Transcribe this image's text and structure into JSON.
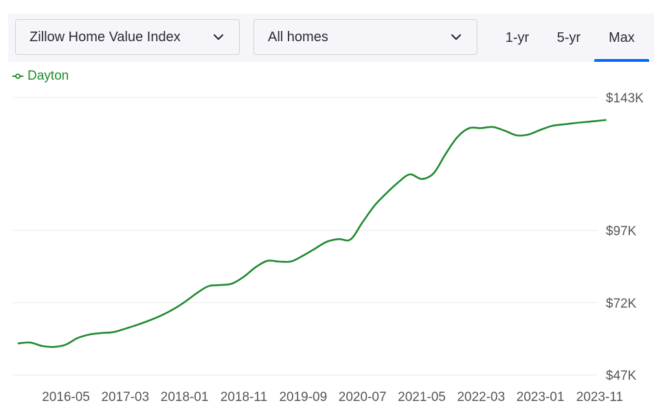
{
  "controls": {
    "metric_dropdown": "Zillow Home Value Index",
    "home_type_dropdown": "All homes",
    "range_tabs": [
      "1-yr",
      "5-yr",
      "Max"
    ],
    "selected_range": "Max",
    "accent_color": "#006aff"
  },
  "chart_data": {
    "type": "line",
    "y_format": "currency_k",
    "y_ticks": [
      47,
      72,
      97,
      143
    ],
    "y_tick_labels": [
      "$47K",
      "$72K",
      "$97K",
      "$143K"
    ],
    "ylim": [
      47,
      143
    ],
    "x_tick_labels": [
      "2016-05",
      "2017-03",
      "2018-01",
      "2018-11",
      "2019-09",
      "2020-07",
      "2021-05",
      "2022-03",
      "2023-01",
      "2023-11"
    ],
    "grid": true,
    "legend_position": "top-left",
    "series": [
      {
        "name": "Dayton",
        "color": "#1f8a2e",
        "x": [
          "2015-09",
          "2015-11",
          "2016-01",
          "2016-03",
          "2016-05",
          "2016-07",
          "2016-09",
          "2016-11",
          "2017-01",
          "2017-03",
          "2017-05",
          "2017-07",
          "2017-09",
          "2017-11",
          "2018-01",
          "2018-03",
          "2018-05",
          "2018-07",
          "2018-09",
          "2018-11",
          "2019-01",
          "2019-03",
          "2019-05",
          "2019-07",
          "2019-09",
          "2019-11",
          "2020-01",
          "2020-03",
          "2020-05",
          "2020-07",
          "2020-09",
          "2020-11",
          "2021-01",
          "2021-03",
          "2021-05",
          "2021-07",
          "2021-09",
          "2021-11",
          "2022-01",
          "2022-03",
          "2022-05",
          "2022-07",
          "2022-09",
          "2022-11",
          "2023-01",
          "2023-03",
          "2023-05",
          "2023-07",
          "2023-09",
          "2023-11",
          "2023-12"
        ],
        "y": [
          57.9,
          58.2,
          57.0,
          56.7,
          57.5,
          59.8,
          61.0,
          61.5,
          61.8,
          63.0,
          64.3,
          65.8,
          67.5,
          69.6,
          72.2,
          75.2,
          77.7,
          78.1,
          78.6,
          81.0,
          84.3,
          86.5,
          86.2,
          86.3,
          88.3,
          90.7,
          93.1,
          94.0,
          93.9,
          99.8,
          105.5,
          109.8,
          113.6,
          116.4,
          114.8,
          116.8,
          123.4,
          129.3,
          132.4,
          132.4,
          132.8,
          131.5,
          129.9,
          130.2,
          131.8,
          133.2,
          133.7,
          134.2,
          134.6,
          135.0,
          135.2
        ]
      }
    ]
  }
}
